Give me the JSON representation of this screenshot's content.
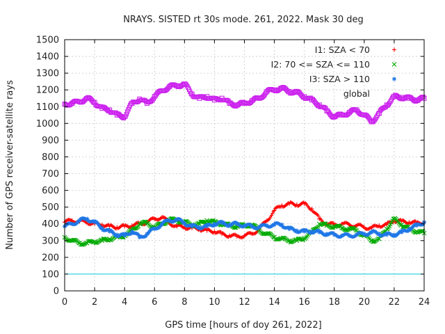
{
  "chart_data": {
    "type": "scatter",
    "title": "NRAYS. SISTED rt 30s mode. 261, 2022. Mask 30 deg",
    "xlabel": "GPS time [hours of doy 261, 2022]",
    "ylabel": "Number of GPS receiver-satellite rays",
    "xlim": [
      0,
      24
    ],
    "ylim": [
      0,
      1500
    ],
    "xticks": [
      0,
      2,
      4,
      6,
      8,
      10,
      12,
      14,
      16,
      18,
      20,
      22,
      24
    ],
    "yticks": [
      0,
      100,
      200,
      300,
      400,
      500,
      600,
      700,
      800,
      900,
      1000,
      1100,
      1200,
      1300,
      1400,
      1500
    ],
    "grid": true,
    "legend_position": "top-right",
    "series": [
      {
        "name": "I1: SZA < 70",
        "marker": "+",
        "color": "#ff0000",
        "x": [
          0,
          0.5,
          1,
          1.5,
          2,
          2.5,
          3,
          3.5,
          4,
          4.5,
          5,
          5.5,
          6,
          6.5,
          7,
          7.5,
          8,
          8.5,
          9,
          9.5,
          10,
          10.5,
          11,
          11.5,
          12,
          12.5,
          13,
          13.5,
          14,
          14.5,
          15,
          15.5,
          16,
          16.5,
          17,
          17.5,
          18,
          18.5,
          19,
          19.5,
          20,
          20.5,
          21,
          21.5,
          22,
          22.5,
          23,
          23.5,
          24
        ],
        "y": [
          410,
          420,
          415,
          410,
          400,
          395,
          385,
          380,
          385,
          390,
          400,
          410,
          430,
          440,
          405,
          385,
          380,
          375,
          370,
          360,
          355,
          340,
          330,
          325,
          330,
          340,
          370,
          420,
          480,
          510,
          520,
          515,
          520,
          490,
          430,
          400,
          395,
          400,
          395,
          390,
          380,
          375,
          390,
          395,
          420,
          415,
          410,
          405,
          410
        ]
      },
      {
        "name": "I2: 70 <= SZA <= 110",
        "marker": "x",
        "color": "#00aa00",
        "x": [
          0,
          0.5,
          1,
          1.5,
          2,
          2.5,
          3,
          3.5,
          4,
          4.5,
          5,
          5.5,
          6,
          6.5,
          7,
          7.5,
          8,
          8.5,
          9,
          9.5,
          10,
          10.5,
          11,
          11.5,
          12,
          12.5,
          13,
          13.5,
          14,
          14.5,
          15,
          15.5,
          16,
          16.5,
          17,
          17.5,
          18,
          18.5,
          19,
          19.5,
          20,
          20.5,
          21,
          21.5,
          22,
          22.5,
          23,
          23.5,
          24
        ],
        "y": [
          320,
          300,
          285,
          285,
          295,
          300,
          310,
          320,
          330,
          360,
          400,
          405,
          380,
          400,
          425,
          420,
          410,
          395,
          400,
          420,
          410,
          400,
          390,
          385,
          390,
          395,
          360,
          340,
          320,
          310,
          300,
          300,
          315,
          350,
          400,
          390,
          385,
          375,
          370,
          360,
          330,
          300,
          310,
          370,
          430,
          395,
          370,
          355,
          345
        ]
      },
      {
        "name": "I3: SZA > 110",
        "marker": "*",
        "color": "#1f77e6",
        "x": [
          0,
          0.5,
          1,
          1.5,
          2,
          2.5,
          3,
          3.5,
          4,
          4.5,
          5,
          5.5,
          6,
          6.5,
          7,
          7.5,
          8,
          8.5,
          9,
          9.5,
          10,
          10.5,
          11,
          11.5,
          12,
          12.5,
          13,
          13.5,
          14,
          14.5,
          15,
          15.5,
          16,
          16.5,
          17,
          17.5,
          18,
          18.5,
          19,
          19.5,
          20,
          20.5,
          21,
          21.5,
          22,
          22.5,
          23,
          23.5,
          24
        ],
        "y": [
          385,
          400,
          420,
          430,
          410,
          375,
          355,
          335,
          330,
          355,
          320,
          340,
          370,
          400,
          420,
          425,
          405,
          385,
          380,
          385,
          400,
          405,
          395,
          400,
          390,
          385,
          380,
          390,
          395,
          395,
          370,
          360,
          355,
          355,
          350,
          340,
          335,
          330,
          330,
          335,
          340,
          350,
          340,
          335,
          335,
          350,
          370,
          390,
          410
        ]
      },
      {
        "name": "global",
        "marker": "square",
        "color": "#cc22ee",
        "x": [
          0,
          0.5,
          1,
          1.5,
          2,
          2.5,
          3,
          3.5,
          4,
          4.5,
          5,
          5.5,
          6,
          6.5,
          7,
          7.5,
          8,
          8.5,
          9,
          9.5,
          10,
          10.5,
          11,
          11.5,
          12,
          12.5,
          13,
          13.5,
          14,
          14.5,
          15,
          15.5,
          16,
          16.5,
          17,
          17.5,
          18,
          18.5,
          19,
          19.5,
          20,
          20.5,
          21,
          21.5,
          22,
          22.5,
          23,
          23.5,
          24
        ],
        "y": [
          1115,
          1120,
          1130,
          1150,
          1125,
          1090,
          1080,
          1050,
          1040,
          1120,
          1145,
          1120,
          1160,
          1195,
          1220,
          1225,
          1235,
          1175,
          1150,
          1160,
          1140,
          1150,
          1120,
          1110,
          1120,
          1135,
          1150,
          1190,
          1200,
          1210,
          1190,
          1185,
          1160,
          1140,
          1110,
          1075,
          1040,
          1050,
          1065,
          1080,
          1050,
          1010,
          1060,
          1110,
          1160,
          1155,
          1150,
          1140,
          1150
        ]
      }
    ],
    "reference_line": {
      "y": 100,
      "color": "#00ccdd"
    }
  }
}
